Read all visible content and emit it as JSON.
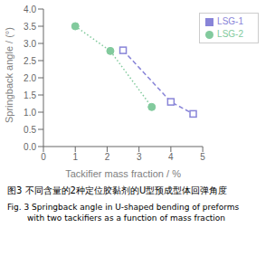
{
  "chart_data": {
    "type": "line",
    "xlabel": "Tackifier mass fraction / %",
    "ylabel": "Springback angle / (°)",
    "annotations": [
      "图3  不同含量的2种定位胶黏剂的U型预成型体回弹角度",
      "Fig.  3  Springback angle in U-shaped bending of preforms",
      "with two tackifiers as a function of mass fraction"
    ],
    "xlim": [
      0,
      5
    ],
    "ylim": [
      0.0,
      4.0
    ],
    "xticks": [
      0,
      1,
      2,
      3,
      4,
      5
    ],
    "yticks": [
      {
        "value": 0.0,
        "label": "0.0"
      },
      0.5,
      {
        "value": 1.0,
        "label": "1.0"
      },
      1.5,
      {
        "value": 2.0,
        "label": "2.0"
      },
      2.5,
      {
        "value": 3.0,
        "label": "3.0"
      },
      3.5,
      {
        "value": 4.0,
        "label": "4.0"
      }
    ],
    "grid": false,
    "legend": "upper right",
    "series": [
      {
        "name": "LSG-1",
        "color": "#8884d8",
        "marker": "square",
        "line_style": "dashed",
        "x": [
          2.5,
          4.0,
          4.7
        ],
        "values": [
          2.8,
          1.3,
          0.95
        ]
      },
      {
        "name": "LSG-2",
        "color": "#82ca9d",
        "marker": "circle",
        "line_style": "dotted",
        "x": [
          1.0,
          2.1,
          3.4
        ],
        "values": [
          3.5,
          2.78,
          1.15
        ]
      }
    ]
  }
}
